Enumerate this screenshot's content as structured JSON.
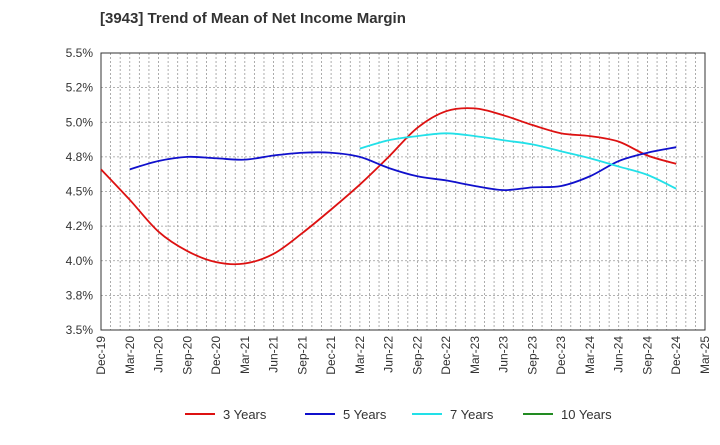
{
  "chart_data": {
    "type": "line",
    "title": "[3943]  Trend of Mean of Net Income Margin",
    "xlabel": "",
    "ylabel": "",
    "categories": [
      "Dec-19",
      "Mar-20",
      "Jun-20",
      "Sep-20",
      "Dec-20",
      "Mar-21",
      "Jun-21",
      "Sep-21",
      "Dec-21",
      "Mar-22",
      "Jun-22",
      "Sep-22",
      "Dec-22",
      "Mar-23",
      "Jun-23",
      "Sep-23",
      "Dec-23",
      "Mar-24",
      "Jun-24",
      "Sep-24",
      "Dec-24",
      "Mar-25"
    ],
    "y_ticks": [
      "3.5%",
      "3.8%",
      "4.0%",
      "4.2%",
      "4.5%",
      "4.8%",
      "5.0%",
      "5.2%",
      "5.5%"
    ],
    "ylim": [
      3.5,
      5.5
    ],
    "grid": true,
    "legend_position": "bottom",
    "series": [
      {
        "name": "3 Years",
        "color": "#dd1111",
        "values": [
          4.66,
          4.44,
          4.21,
          4.07,
          3.99,
          3.98,
          4.05,
          4.2,
          4.37,
          4.55,
          4.75,
          4.96,
          5.08,
          5.1,
          5.05,
          4.98,
          4.92,
          4.9,
          4.86,
          4.76,
          4.7,
          null
        ]
      },
      {
        "name": "5 Years",
        "color": "#1010cc",
        "values": [
          null,
          4.66,
          4.72,
          4.75,
          4.74,
          4.73,
          4.76,
          4.78,
          4.78,
          4.75,
          4.67,
          4.61,
          4.58,
          4.54,
          4.51,
          4.53,
          4.54,
          4.61,
          4.72,
          4.78,
          4.82,
          null
        ]
      },
      {
        "name": "7 Years",
        "color": "#22e0e8",
        "values": [
          null,
          null,
          null,
          null,
          null,
          null,
          null,
          null,
          null,
          4.81,
          4.87,
          4.9,
          4.92,
          4.9,
          4.87,
          4.84,
          4.79,
          4.74,
          4.68,
          4.62,
          4.52,
          null
        ]
      },
      {
        "name": "10 Years",
        "color": "#228b22",
        "values": [
          null,
          null,
          null,
          null,
          null,
          null,
          null,
          null,
          null,
          null,
          null,
          null,
          null,
          null,
          null,
          null,
          null,
          null,
          null,
          null,
          null,
          null
        ]
      }
    ]
  }
}
